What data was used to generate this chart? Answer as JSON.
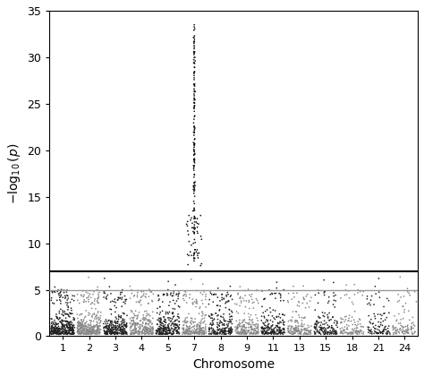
{
  "chromosomes": [
    1,
    2,
    3,
    4,
    5,
    7,
    8,
    9,
    11,
    13,
    15,
    18,
    21,
    24
  ],
  "genome_wide_sig": 7.0,
  "suggestive_sig": 5.0,
  "ylim": [
    0,
    35
  ],
  "yticks": [
    0,
    5,
    10,
    15,
    20,
    25,
    30,
    35
  ],
  "ylabel": "$-\\log_{10}(p)$",
  "xlabel": "Chromosome",
  "color_odd": "#222222",
  "color_even": "#888888",
  "sig_line_color": "#000000",
  "sugg_line_color": "#999999",
  "point_size": 1.5,
  "n_base": 3000,
  "chr7_spike_count": 120,
  "chr7_spike_min": 7.5,
  "chr7_spike_max": 33.5,
  "chr7_scatter_count": 40,
  "chr7_scatter_min": 7.5,
  "chr7_scatter_max": 13.5,
  "background_color": "#ffffff",
  "figsize": [
    4.74,
    4.21
  ],
  "dpi": 100
}
